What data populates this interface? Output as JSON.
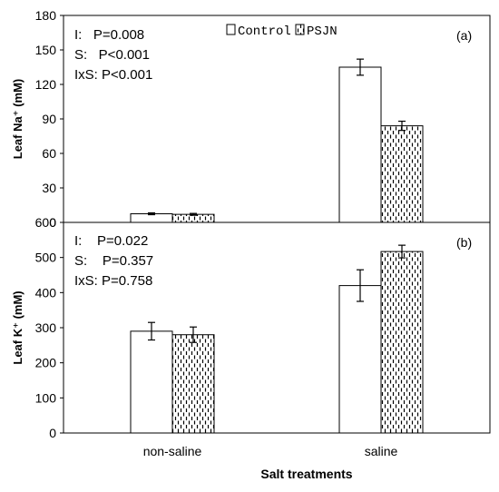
{
  "chart_data": [
    {
      "type": "bar",
      "panel_label": "(a)",
      "ylabel": "Leaf Na⁺ (mM)",
      "ylim": [
        0,
        180
      ],
      "yticks": [
        "0",
        "30",
        "60",
        "90",
        "120",
        "150",
        "180"
      ],
      "categories": [
        "non-saline",
        "saline"
      ],
      "series": [
        {
          "name": "Control",
          "values": [
            7.5,
            135
          ],
          "errors": [
            0.8,
            7
          ],
          "fill": "white"
        },
        {
          "name": "PSJN",
          "values": [
            7,
            84
          ],
          "errors": [
            0.8,
            4
          ],
          "fill": "dashed"
        }
      ],
      "stats": [
        "I:   P=0.008",
        "S:   P<0.001",
        "IxS: P<0.001"
      ],
      "legend": {
        "position": "top-center",
        "items": [
          "Control",
          "PSJN"
        ]
      },
      "grid": false
    },
    {
      "type": "bar",
      "panel_label": "(b)",
      "ylabel": "Leaf K⁺ (mM)",
      "ylim": [
        0,
        600
      ],
      "yticks": [
        "0",
        "100",
        "200",
        "300",
        "400",
        "500",
        "600"
      ],
      "categories": [
        "non-saline",
        "saline"
      ],
      "series": [
        {
          "name": "Control",
          "values": [
            290,
            420
          ],
          "errors": [
            25,
            45
          ],
          "fill": "white"
        },
        {
          "name": "PSJN",
          "values": [
            280,
            517
          ],
          "errors": [
            22,
            18
          ],
          "fill": "dashed"
        }
      ],
      "stats": [
        "I:    P=0.022",
        "S:    P=0.357",
        "IxS: P=0.758"
      ],
      "grid": false
    }
  ],
  "xlabel": "Salt treatments"
}
